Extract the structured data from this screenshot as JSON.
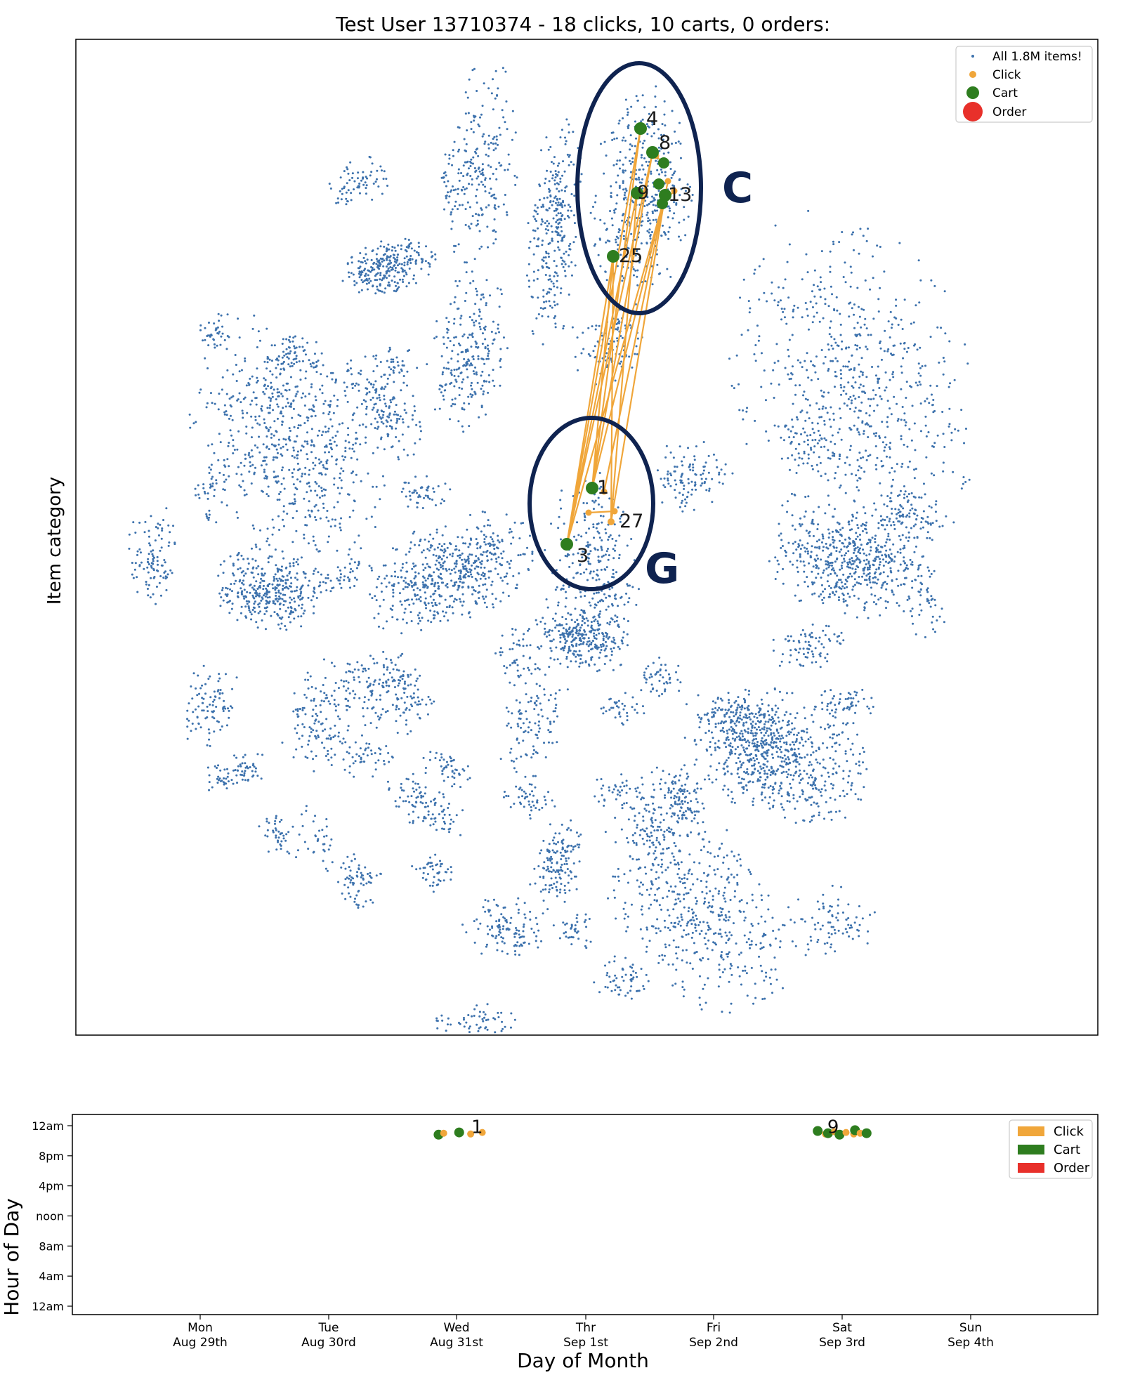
{
  "colors": {
    "items": "#3d72ad",
    "click": "#f0a63a",
    "cart": "#2e7d1f",
    "order": "#e8302a",
    "circle": "#0f2350",
    "axis": "#000000"
  },
  "chart_data": [
    {
      "type": "scatter",
      "title": "Test User 13710374 - 18 clicks, 10 carts, 0 orders:",
      "xlabel": "",
      "ylabel": "Item category",
      "grid": false,
      "legend_position": "top-right",
      "legend": [
        {
          "label": "All 1.8M items!",
          "marker": "small-dot",
          "color": "#3d72ad"
        },
        {
          "label": "Click",
          "marker": "dot",
          "color": "#f0a63a"
        },
        {
          "label": "Cart",
          "marker": "large-dot",
          "color": "#2e7d1f"
        },
        {
          "label": "Order",
          "marker": "largest-dot",
          "color": "#e8302a"
        }
      ],
      "background_series": {
        "name": "All 1.8M items!",
        "count": 1800000
      },
      "event_path": [
        {
          "label": "1",
          "type": "cart",
          "cluster": "G"
        },
        {
          "label": "3",
          "type": "cart",
          "cluster": "G"
        },
        {
          "label": "4",
          "type": "cart",
          "cluster": "C"
        },
        {
          "label": "8",
          "type": "cart",
          "cluster": "C"
        },
        {
          "label": "9",
          "type": "cart",
          "cluster": "C"
        },
        {
          "label": "13",
          "type": "cart",
          "cluster": "C"
        },
        {
          "label": "25",
          "type": "cart",
          "cluster": "C"
        },
        {
          "label": "27",
          "type": "click",
          "cluster": "G"
        }
      ],
      "annotations": [
        "C",
        "G"
      ]
    },
    {
      "type": "scatter",
      "title": "",
      "xlabel": "Day of Month",
      "ylabel": "Hour of Day",
      "grid": false,
      "legend_position": "top-right",
      "legend": [
        {
          "label": "Click",
          "color": "#f0a63a"
        },
        {
          "label": "Cart",
          "color": "#2e7d1f"
        },
        {
          "label": "Order",
          "color": "#e8302a"
        }
      ],
      "x_ticks": [
        {
          "day": "Mon",
          "date": "Aug 29th"
        },
        {
          "day": "Tue",
          "date": "Aug 30rd"
        },
        {
          "day": "Wed",
          "date": "Aug 31st"
        },
        {
          "day": "Thr",
          "date": "Sep 1st"
        },
        {
          "day": "Fri",
          "date": "Sep 2nd"
        },
        {
          "day": "Sat",
          "date": "Sep 3rd"
        },
        {
          "day": "Sun",
          "date": "Sep 4th"
        }
      ],
      "y_ticks": [
        "12am",
        "4am",
        "8am",
        "noon",
        "4pm",
        "8pm",
        "12am"
      ],
      "ylim": [
        0,
        24
      ],
      "points": [
        {
          "day": "Wed",
          "hour": 22.8,
          "type": "cart",
          "offset": -0.14
        },
        {
          "day": "Wed",
          "hour": 23.0,
          "type": "click",
          "offset": -0.1
        },
        {
          "day": "Wed",
          "hour": 23.1,
          "type": "cart",
          "offset": 0.02
        },
        {
          "day": "Wed",
          "hour": 22.9,
          "type": "click",
          "offset": 0.11
        },
        {
          "day": "Wed",
          "hour": 23.1,
          "type": "click",
          "offset": 0.2
        },
        {
          "day": "Sat",
          "hour": 23.3,
          "type": "cart",
          "offset": -0.19
        },
        {
          "day": "Sat",
          "hour": 22.9,
          "type": "click",
          "offset": -0.13
        },
        {
          "day": "Sat",
          "hour": 23.0,
          "type": "cart",
          "offset": -0.11
        },
        {
          "day": "Sat",
          "hour": 23.2,
          "type": "click",
          "offset": -0.06
        },
        {
          "day": "Sat",
          "hour": 22.8,
          "type": "cart",
          "offset": -0.02
        },
        {
          "day": "Sat",
          "hour": 23.1,
          "type": "click",
          "offset": 0.03
        },
        {
          "day": "Sat",
          "hour": 22.9,
          "type": "click",
          "offset": 0.09
        },
        {
          "day": "Sat",
          "hour": 23.4,
          "type": "cart",
          "offset": 0.1
        },
        {
          "day": "Sat",
          "hour": 23.0,
          "type": "click",
          "offset": 0.14
        },
        {
          "day": "Sat",
          "hour": 23.0,
          "type": "cart",
          "offset": 0.19
        }
      ],
      "point_labels": [
        {
          "label": "1",
          "day": "Wed",
          "hour": 23.6,
          "offset": 0.16
        },
        {
          "label": "9",
          "day": "Sat",
          "hour": 23.6,
          "offset": -0.07
        }
      ]
    }
  ]
}
